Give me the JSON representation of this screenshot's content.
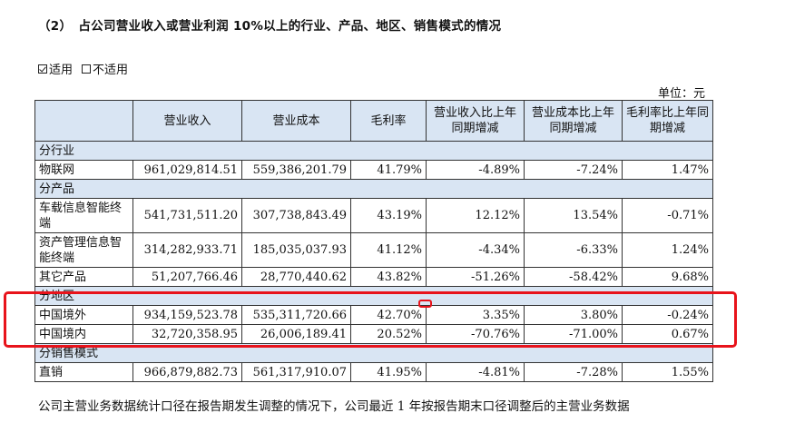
{
  "heading": "（2）　占公司营业收入或营业利润 10%以上的行业、产品、地区、销售模式的情况",
  "applicability": {
    "applicable_mark": "☑",
    "applicable_label": "适用",
    "not_applicable_mark": "□",
    "not_applicable_label": "不适用"
  },
  "unit": "单位：元",
  "table": {
    "headers": [
      "",
      "营业收入",
      "营业成本",
      "毛利率",
      "营业收入比上年同期增减",
      "营业成本比上年同期增减",
      "毛利率比上年同期增减"
    ],
    "sections": [
      {
        "title": "分行业",
        "rows": [
          {
            "label": "物联网",
            "values": [
              "961,029,814.51",
              "559,386,201.79",
              "41.79%",
              "-4.89%",
              "-7.24%",
              "1.47%"
            ]
          }
        ]
      },
      {
        "title": "分产品",
        "rows": [
          {
            "label": "车载信息智能终端",
            "values": [
              "541,731,511.20",
              "307,738,843.49",
              "43.19%",
              "12.12%",
              "13.54%",
              "-0.71%"
            ]
          },
          {
            "label": "资产管理信息智能终端",
            "values": [
              "314,282,933.71",
              "185,035,037.93",
              "41.12%",
              "-4.34%",
              "-6.33%",
              "1.24%"
            ]
          },
          {
            "label": "其它产品",
            "values": [
              "51,207,766.46",
              "28,770,440.62",
              "43.82%",
              "-51.26%",
              "-58.42%",
              "9.68%"
            ]
          }
        ]
      },
      {
        "title": "分地区",
        "rows": [
          {
            "label": "中国境外",
            "values": [
              "934,159,523.78",
              "535,311,720.66",
              "42.70%",
              "3.35%",
              "3.80%",
              "-0.24%"
            ]
          },
          {
            "label": "中国境内",
            "values": [
              "32,720,358.95",
              "26,006,189.41",
              "20.52%",
              "-70.76%",
              "-71.00%",
              "0.67%"
            ]
          }
        ]
      },
      {
        "title": "分销售模式",
        "rows": [
          {
            "label": "直销",
            "values": [
              "966,879,882.73",
              "561,317,910.07",
              "41.95%",
              "-4.81%",
              "-7.28%",
              "1.55%"
            ]
          }
        ]
      }
    ]
  },
  "footnote": "公司主营业务数据统计口径在报告期发生调整的情况下，公司最近 1 年按报告期末口径调整后的主营业务数据",
  "colors": {
    "header_bg": "#d9e5f3",
    "highlight_red": "#e8131b"
  }
}
